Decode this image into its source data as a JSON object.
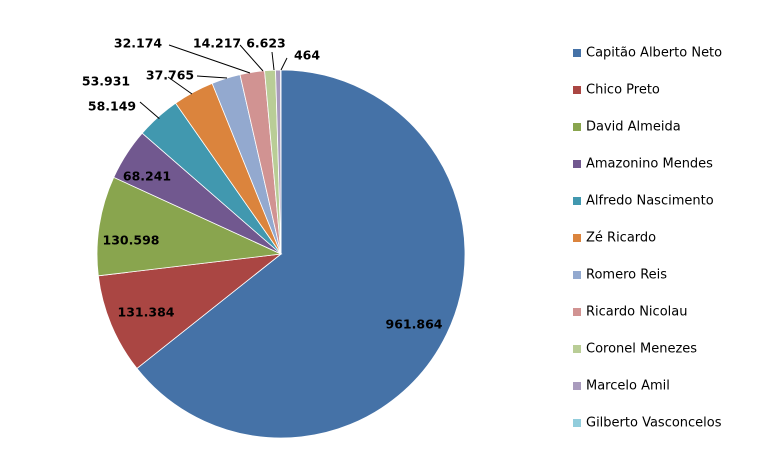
{
  "chart_data": {
    "type": "pie",
    "title": "",
    "legend_position": "right",
    "slices": [
      {
        "name": "Capitão Alberto Neto",
        "value": 961864,
        "label": "961.864",
        "color": "#4572A7"
      },
      {
        "name": "Chico Preto",
        "value": 131384,
        "label": "131.384",
        "color": "#AA4643"
      },
      {
        "name": "David Almeida",
        "value": 130598,
        "label": "130.598",
        "color": "#89A54E"
      },
      {
        "name": "Amazonino Mendes",
        "value": 68241,
        "label": "68.241",
        "color": "#71588F"
      },
      {
        "name": "Alfredo Nascimento",
        "value": 58149,
        "label": "58.149",
        "color": "#4198AF"
      },
      {
        "name": "Zé Ricardo",
        "value": 53931,
        "label": "53.931",
        "color": "#DB843D"
      },
      {
        "name": "Romero Reis",
        "value": 37765,
        "label": "37.765",
        "color": "#93A9CF"
      },
      {
        "name": "Ricardo Nicolau",
        "value": 32174,
        "label": "32.174",
        "color": "#D19392"
      },
      {
        "name": "Coronel Menezes",
        "value": 14217,
        "label": "14.217",
        "color": "#B9CD96"
      },
      {
        "name": "Marcelo Amil",
        "value": 6623,
        "label": "6.623",
        "color": "#A99BBD"
      },
      {
        "name": "Gilberto Vasconcelos",
        "value": 464,
        "label": "464",
        "color": "#92CDDC"
      }
    ]
  }
}
